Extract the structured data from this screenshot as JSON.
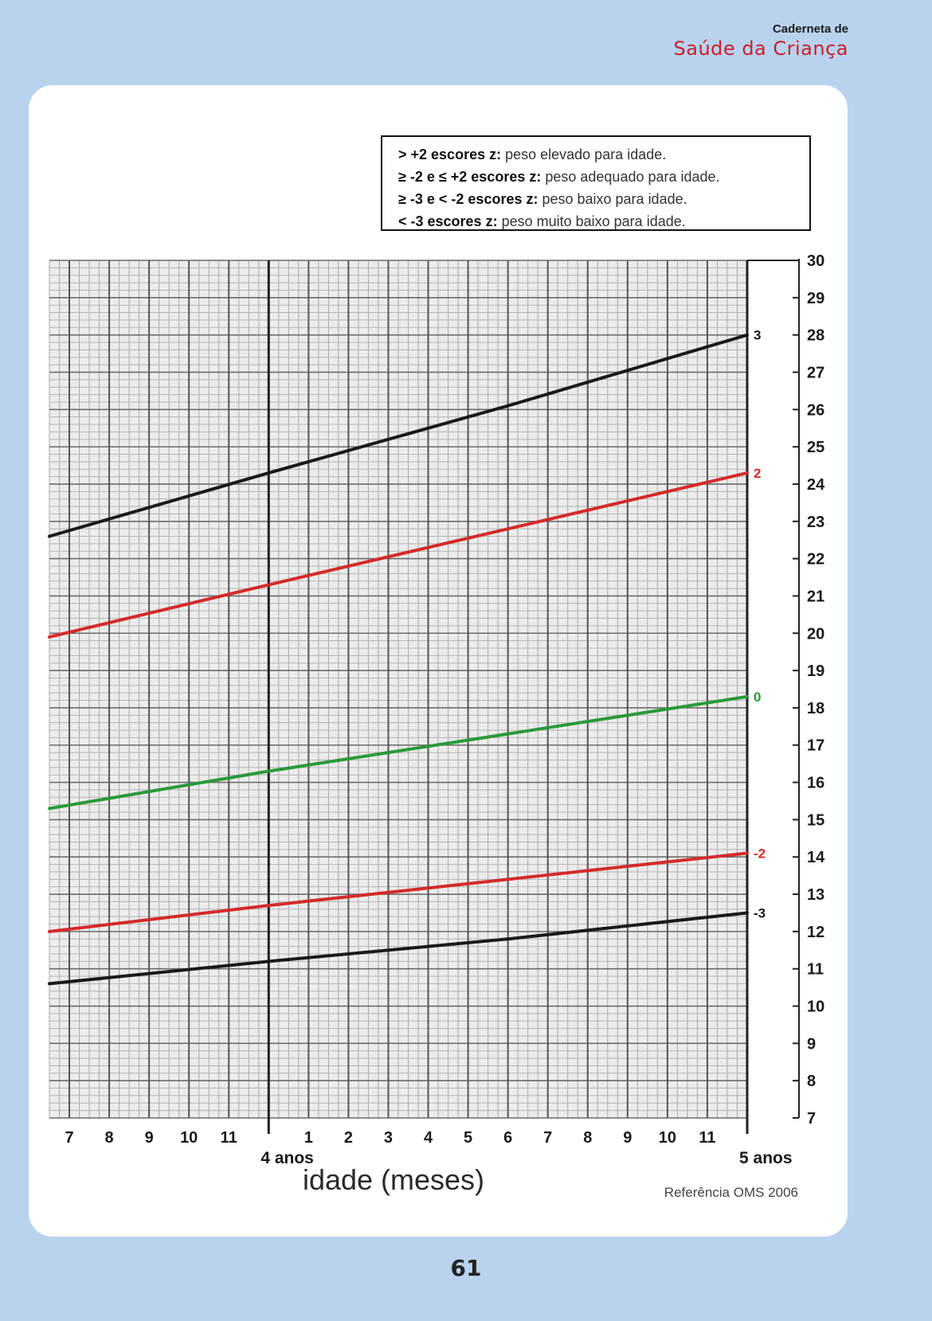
{
  "header": {
    "brand_top": "Caderneta de",
    "brand_main": "Saúde da Criança"
  },
  "legend": {
    "items": [
      {
        "bold": "> +2 escores z:",
        "text": " peso elevado para idade."
      },
      {
        "bold": "≥ -2 e ≤ +2 escores z:",
        "text": " peso adequado para idade."
      },
      {
        "bold": "≥ -3 e < -2 escores z:",
        "text": " peso baixo para idade."
      },
      {
        "bold": "< -3 escores z:",
        "text": " peso muito baixo para idade."
      }
    ]
  },
  "chart_data": {
    "type": "line",
    "xlabel": "idade (meses)",
    "xlim": [
      42.5,
      60
    ],
    "ylim": [
      7,
      30
    ],
    "x_ticks": [
      {
        "value": 43,
        "label": "7"
      },
      {
        "value": 44,
        "label": "8"
      },
      {
        "value": 45,
        "label": "9"
      },
      {
        "value": 46,
        "label": "10"
      },
      {
        "value": 47,
        "label": "11"
      },
      {
        "value": 49,
        "label": "1"
      },
      {
        "value": 50,
        "label": "2"
      },
      {
        "value": 51,
        "label": "3"
      },
      {
        "value": 52,
        "label": "4"
      },
      {
        "value": 53,
        "label": "5"
      },
      {
        "value": 54,
        "label": "6"
      },
      {
        "value": 55,
        "label": "7"
      },
      {
        "value": 56,
        "label": "8"
      },
      {
        "value": 57,
        "label": "9"
      },
      {
        "value": 58,
        "label": "10"
      },
      {
        "value": 59,
        "label": "11"
      }
    ],
    "year_markers": [
      {
        "value": 48,
        "label": "4 anos"
      },
      {
        "value": 60,
        "label": "5 anos"
      }
    ],
    "y_ticks": [
      7,
      8,
      9,
      10,
      11,
      12,
      13,
      14,
      15,
      16,
      17,
      18,
      19,
      20,
      21,
      22,
      23,
      24,
      25,
      26,
      27,
      28,
      29,
      30
    ],
    "grid": true,
    "reference": "Referência OMS 2006",
    "series": [
      {
        "name": "3",
        "color": "#1a1a1a",
        "x": [
          42.5,
          48,
          54,
          60
        ],
        "y": [
          22.6,
          24.3,
          26.1,
          28.0
        ]
      },
      {
        "name": "2",
        "color": "#d42b2b",
        "x": [
          42.5,
          48,
          54,
          60
        ],
        "y": [
          19.9,
          21.3,
          22.8,
          24.3
        ]
      },
      {
        "name": "0",
        "color": "#2a9a3a",
        "x": [
          42.5,
          48,
          54,
          60
        ],
        "y": [
          15.3,
          16.3,
          17.3,
          18.3
        ]
      },
      {
        "name": "-2",
        "color": "#d42b2b",
        "x": [
          42.5,
          48,
          54,
          60
        ],
        "y": [
          12.0,
          12.7,
          13.4,
          14.1
        ]
      },
      {
        "name": "-3",
        "color": "#1a1a1a",
        "x": [
          42.5,
          48,
          54,
          60
        ],
        "y": [
          10.6,
          11.2,
          11.8,
          12.5
        ]
      }
    ]
  },
  "footer": {
    "page_number": "61"
  }
}
